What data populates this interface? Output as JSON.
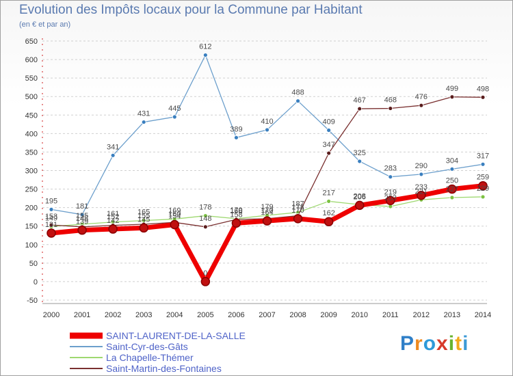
{
  "title": "Evolution des Impôts locaux pour la Commune par Habitant",
  "subtitle": "(en € et par an)",
  "logo": {
    "text": "Proxiti"
  },
  "colors": {
    "grid": "#cfcfcf",
    "axis_text": "#333333",
    "label_text": "#4a4a4a",
    "legend_text": "#4f63c8"
  },
  "chart_data": {
    "type": "line",
    "title": "Evolution des Impôts locaux pour la Commune par Habitant",
    "subtitle": "(en € et par an)",
    "xlabel": "",
    "ylabel": "",
    "x": [
      "2000",
      "2001",
      "2002",
      "2003",
      "2004",
      "2005",
      "2006",
      "2007",
      "2008",
      "2009",
      "2010",
      "2011",
      "2012",
      "2013",
      "2014"
    ],
    "ylim": [
      -50,
      650
    ],
    "yticks": [
      "-50",
      "0",
      "50",
      "100",
      "150",
      "200",
      "250",
      "300",
      "350",
      "400",
      "450",
      "500",
      "550",
      "600",
      "650"
    ],
    "grid": "dashed horizontal",
    "legend_position": "bottom-left",
    "series": [
      {
        "name": "SAINT-LAURENT-DE-LA-SALLE",
        "color": "#ee0000",
        "marker_color": "#c01010",
        "width": 7,
        "values": [
          131,
          139,
          142,
          145,
          154,
          0,
          158,
          164,
          170,
          162,
          206,
          219,
          233,
          250,
          259
        ],
        "labels": [
          "131",
          "139",
          "142",
          "145",
          "154",
          "0",
          "158",
          "164",
          "170",
          "162",
          "206",
          "219",
          "233",
          "250",
          "259"
        ]
      },
      {
        "name": "Saint-Cyr-des-Gâts",
        "color": "#6c9fcc",
        "marker_color": "#3a7fbf",
        "width": 1.3,
        "values": [
          195,
          181,
          341,
          431,
          445,
          612,
          389,
          410,
          488,
          409,
          325,
          283,
          290,
          304,
          317
        ],
        "labels": [
          "195",
          "181",
          "341",
          "431",
          "445",
          "612",
          "389",
          "410",
          "488",
          "409",
          "325",
          "283",
          "290",
          "304",
          "317"
        ]
      },
      {
        "name": "La Chapelle-Thémer",
        "color": "#9ed870",
        "marker_color": "#7cc242",
        "width": 1.3,
        "values": [
          149,
          155,
          161,
          165,
          169,
          178,
          170,
          179,
          187,
          217,
          208,
          203,
          221,
          227,
          229
        ],
        "labels": [
          "149",
          "155",
          "161",
          "165",
          "169",
          "178",
          "170",
          "179",
          "187",
          "217",
          "208",
          "203",
          "221",
          "227",
          "229"
        ]
      },
      {
        "name": "Saint-Martin-des-Fontaines",
        "color": "#7a3030",
        "marker_color": "#5a1d1d",
        "width": 1.3,
        "values": [
          153,
          148,
          152,
          155,
          160,
          148,
          168,
          170,
          178,
          347,
          467,
          468,
          476,
          499,
          498
        ],
        "labels": [
          "153",
          "148",
          "152",
          "155",
          "160",
          "148",
          "168",
          "170",
          "178",
          "347",
          "467",
          "468",
          "476",
          "499",
          "498"
        ]
      }
    ]
  }
}
